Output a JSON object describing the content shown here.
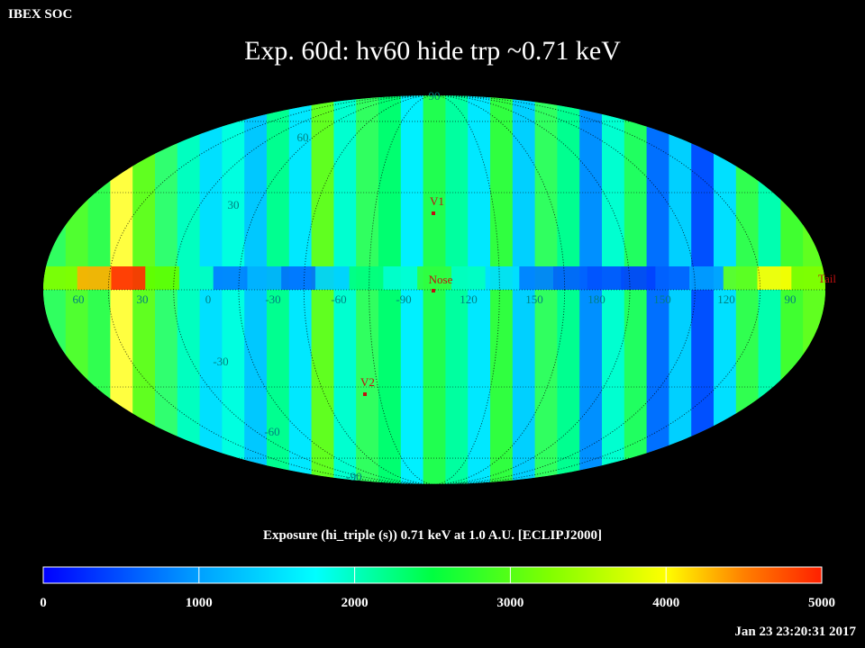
{
  "header": {
    "org": "IBEX SOC"
  },
  "title": "Exp.   60d: hv60 hide trp ~0.71 keV",
  "map": {
    "projection": "mollweide",
    "lon_labels": [
      "60",
      "30",
      "0",
      "-30",
      "-60",
      "-90",
      "120",
      "150",
      "180",
      "150",
      "120",
      "90"
    ],
    "lat_labels": [
      "90",
      "60",
      "30",
      "-30",
      "-60",
      "-90"
    ],
    "markers": [
      {
        "label": "V1"
      },
      {
        "label": "Nose"
      },
      {
        "label": "V2"
      },
      {
        "label": "Tail"
      }
    ]
  },
  "colorbar": {
    "label": "Exposure (hi_triple (s))  0.71 keV at 1.0 A.U. [ECLIPJ2000]",
    "ticks": [
      "0",
      "1000",
      "2000",
      "3000",
      "4000",
      "5000"
    ],
    "min": 0,
    "max": 5000,
    "colors": [
      "#0000ff",
      "#00ffff",
      "#00ff00",
      "#ffff00",
      "#ff0000"
    ]
  },
  "timestamp": "Jan 23 23:20:31 2017"
}
